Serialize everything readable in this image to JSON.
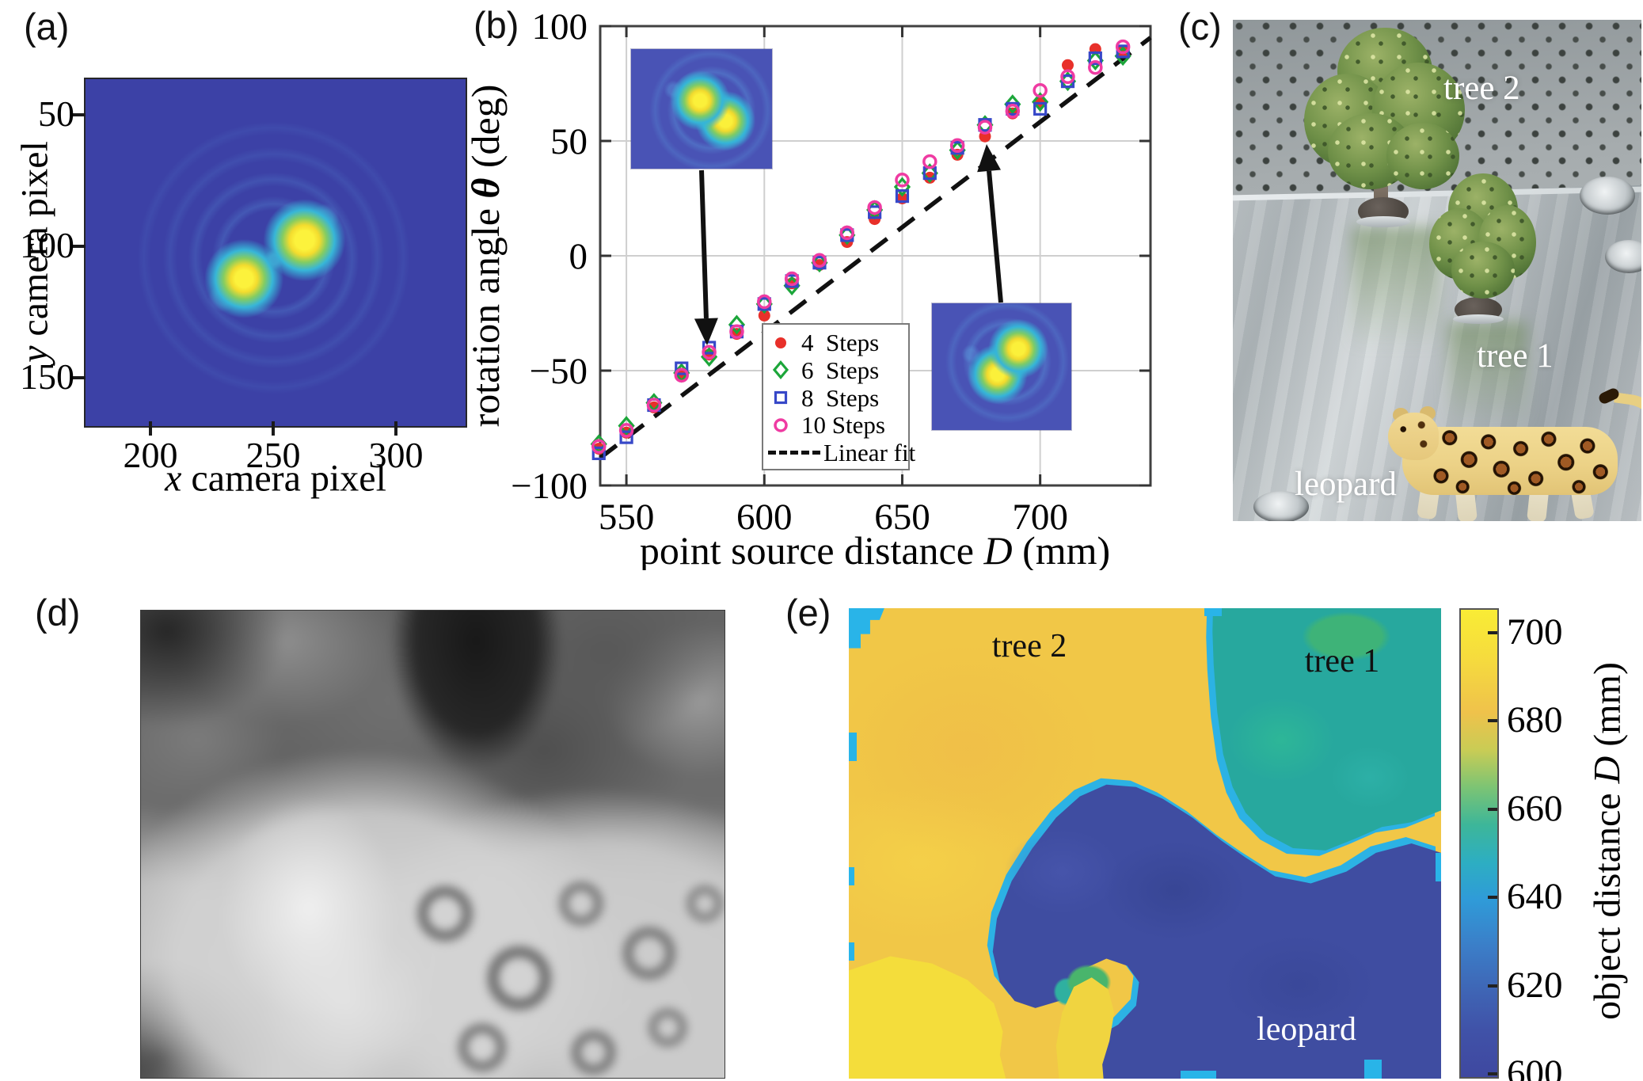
{
  "figure": {
    "panel_a": {
      "label": "(a)",
      "xlabel_var": "x",
      "xlabel_rest": " camera pixel",
      "ylabel_var": "y",
      "ylabel_rest": " camera pixel",
      "xticks": [
        200,
        250,
        300
      ],
      "yticks": [
        50,
        100,
        150
      ]
    },
    "panel_b": {
      "label": "(b)"
    },
    "panel_c": {
      "label": "(c)",
      "annotations": {
        "tree2": "tree 2",
        "tree1": "tree 1",
        "leopard": "leopard"
      }
    },
    "panel_d": {
      "label": "(d)"
    },
    "panel_e": {
      "label": "(e)",
      "annotations": {
        "tree2": "tree 2",
        "tree1": "tree 1",
        "leopard": "leopard"
      },
      "colorbar": {
        "ticks": [
          700,
          680,
          660,
          640,
          620,
          600
        ],
        "label_pre": "object distance ",
        "label_var": "D",
        "label_post": " (mm)",
        "range": [
          600,
          700
        ]
      }
    }
  },
  "chart_data": {
    "type": "scatter",
    "xlabel_pre": "point source distance ",
    "xlabel_var": "D",
    "xlabel_post": " (mm)",
    "ylabel_pre": "rotation angle ",
    "ylabel_var": "θ",
    "ylabel_post": " (deg)",
    "xlim": [
      540.5,
      740
    ],
    "ylim": [
      -100,
      100
    ],
    "xticks": [
      550,
      600,
      650,
      700
    ],
    "yticks": [
      -100,
      -50,
      0,
      50,
      100
    ],
    "grid": true,
    "legend_position": "bottom-center",
    "x": [
      540,
      550,
      560,
      570,
      580,
      590,
      600,
      610,
      620,
      630,
      640,
      650,
      660,
      670,
      680,
      690,
      700,
      710,
      720,
      730
    ],
    "series": [
      {
        "name": "4  Steps",
        "marker": "circle-filled",
        "color": "#e8302a",
        "values": [
          -84,
          -77,
          -66,
          -52,
          -43,
          -34,
          -26,
          -12,
          -4,
          6,
          16,
          25,
          34,
          44,
          52,
          62,
          67,
          83,
          90,
          89
        ]
      },
      {
        "name": "6  Steps",
        "marker": "diamond-open",
        "color": "#1ca63a",
        "values": [
          -82,
          -74,
          -64,
          -51,
          -44,
          -30,
          -21,
          -13,
          -3,
          9,
          20,
          30,
          36,
          46,
          57,
          66,
          67,
          76,
          85,
          87
        ]
      },
      {
        "name": "8  Steps",
        "marker": "square-open",
        "color": "#3748c8",
        "values": [
          -86,
          -79,
          -65,
          -49,
          -40,
          -33,
          -21,
          -11,
          -3,
          9,
          19,
          26,
          36,
          47,
          57,
          64,
          64,
          76,
          86,
          89
        ]
      },
      {
        "name": "10 Steps",
        "marker": "circle-open",
        "color": "#ef3ba2",
        "values": [
          -83,
          -76,
          -65,
          -52,
          -42,
          -33,
          -20,
          -10,
          -2,
          10,
          21,
          33,
          41,
          48,
          56,
          63,
          72,
          78,
          82,
          91
        ]
      }
    ],
    "fit": {
      "name": "Linear fit",
      "color": "#111111",
      "x": [
        540.5,
        740
      ],
      "y": [
        -88,
        95
      ]
    },
    "insets": [
      {
        "desc": "double-helix PSF image, rotated clockwise",
        "points_to": {
          "D": 580,
          "theta": -42
        }
      },
      {
        "desc": "double-helix PSF image, rotated counter-clockwise",
        "points_to": {
          "D": 680,
          "theta": 52
        }
      }
    ]
  }
}
